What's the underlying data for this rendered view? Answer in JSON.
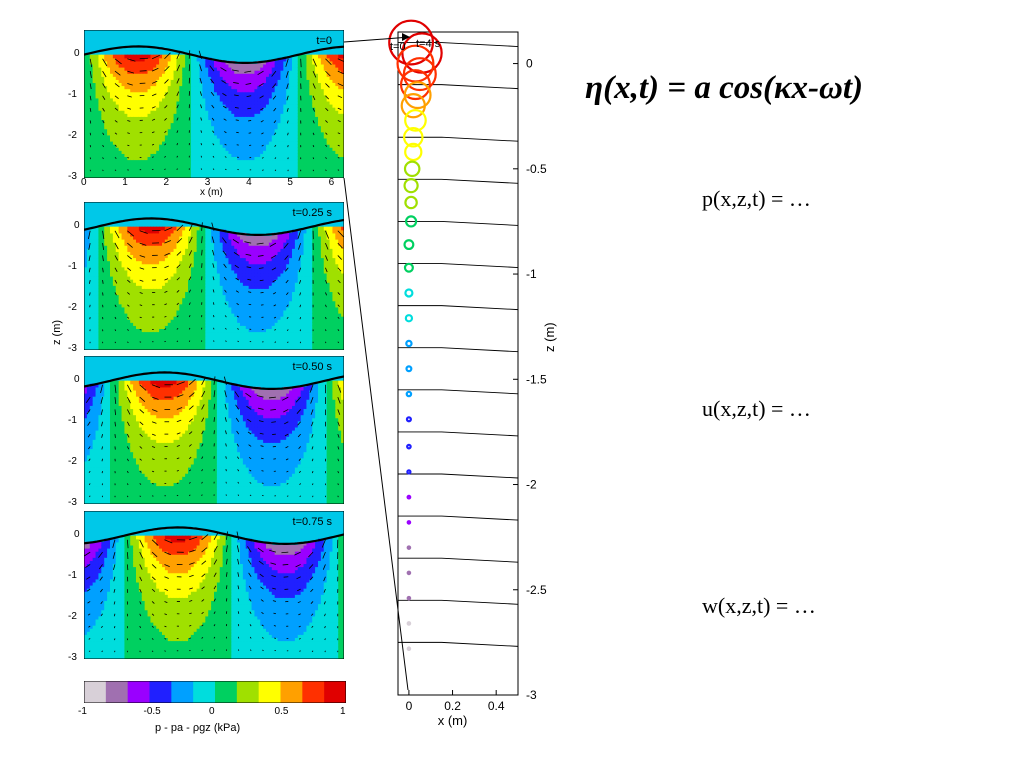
{
  "equations": {
    "main": "η(x,t) = a cos(κx-ωt)",
    "p": "p(x,z,t) = …",
    "u": "u(x,z,t) = …",
    "w": "w(x,z,t) = …"
  },
  "chart_data": [
    {
      "type": "heatmap",
      "panels": [
        {
          "time_label": "t=0",
          "phase": 0.0
        },
        {
          "time_label": "t=0.25 s",
          "phase": 0.25
        },
        {
          "time_label": "t=0.50 s",
          "phase": 0.5
        },
        {
          "time_label": "t=0.75 s",
          "phase": 0.75
        }
      ],
      "xlabel": "x (m)",
      "ylabel": "z (m)",
      "xticks": [
        "0",
        "1",
        "2",
        "3",
        "4",
        "5",
        "6"
      ],
      "yticks": [
        "0",
        "-1",
        "-2",
        "-3"
      ],
      "xlim": [
        0,
        6.3
      ],
      "ylim": [
        -3,
        0.6
      ],
      "colorbar": {
        "label": "p - pa - ρgz (kPa)",
        "ticks": [
          "-1",
          "-0.5",
          "0",
          "0.5",
          "1"
        ],
        "range": [
          -1,
          1
        ],
        "colors": [
          "#d8d0d8",
          "#a070b0",
          "#9a00ff",
          "#2020ff",
          "#00a0ff",
          "#00dddd",
          "#00d060",
          "#a0e000",
          "#ffff00",
          "#ffa000",
          "#ff3000",
          "#e00000"
        ]
      }
    },
    {
      "type": "line",
      "title_labels": [
        "t=0",
        "t=4 s"
      ],
      "xlabel": "x (m)",
      "ylabel": "z (m)",
      "xticks": [
        "0",
        "0.2",
        "0.4"
      ],
      "yticks": [
        "0",
        "-0.5",
        "-1",
        "-1.5",
        "-2",
        "-2.5",
        "-3"
      ],
      "xlim": [
        -0.05,
        0.5
      ],
      "ylim": [
        -3,
        0.15
      ],
      "orbits": {
        "z_centers": [
          0.1,
          0.05,
          0,
          -0.05,
          -0.1,
          -0.15,
          -0.2,
          -0.27,
          -0.35,
          -0.42,
          -0.5,
          -0.58,
          -0.66,
          -0.75,
          -0.86,
          -0.97,
          -1.09,
          -1.21,
          -1.33,
          -1.45,
          -1.57,
          -1.69,
          -1.82,
          -1.94,
          -2.06,
          -2.18,
          -2.3,
          -2.42,
          -2.54,
          -2.66,
          -2.78
        ],
        "radii": [
          0.1,
          0.09,
          0.082,
          0.073,
          0.066,
          0.059,
          0.053,
          0.047,
          0.042,
          0.037,
          0.033,
          0.03,
          0.026,
          0.023,
          0.02,
          0.018,
          0.016,
          0.014,
          0.012,
          0.011,
          0.01,
          0.009,
          0.008,
          0.007,
          0.006,
          0.0055,
          0.005,
          0.0045,
          0.004,
          0.0035,
          0.003
        ],
        "x_offsets": [
          0.01,
          0.06,
          0.03,
          0.05,
          0.03,
          0.04,
          0.02,
          0.03,
          0.02,
          0.02,
          0.015,
          0.01,
          0.01,
          0.01,
          0.0,
          0.0,
          0.0,
          0.0,
          0.0,
          0.0,
          0.0,
          0.0,
          0.0,
          0.0,
          0.0,
          0.0,
          0.0,
          0.0,
          0.0,
          0.0,
          0.0
        ]
      },
      "streamlines_z": [
        0.1,
        -0.1,
        -0.35,
        -0.55,
        -0.75,
        -0.95,
        -1.15,
        -1.35,
        -1.55,
        -1.75,
        -1.95,
        -2.15,
        -2.35,
        -2.55,
        -2.75
      ]
    }
  ]
}
